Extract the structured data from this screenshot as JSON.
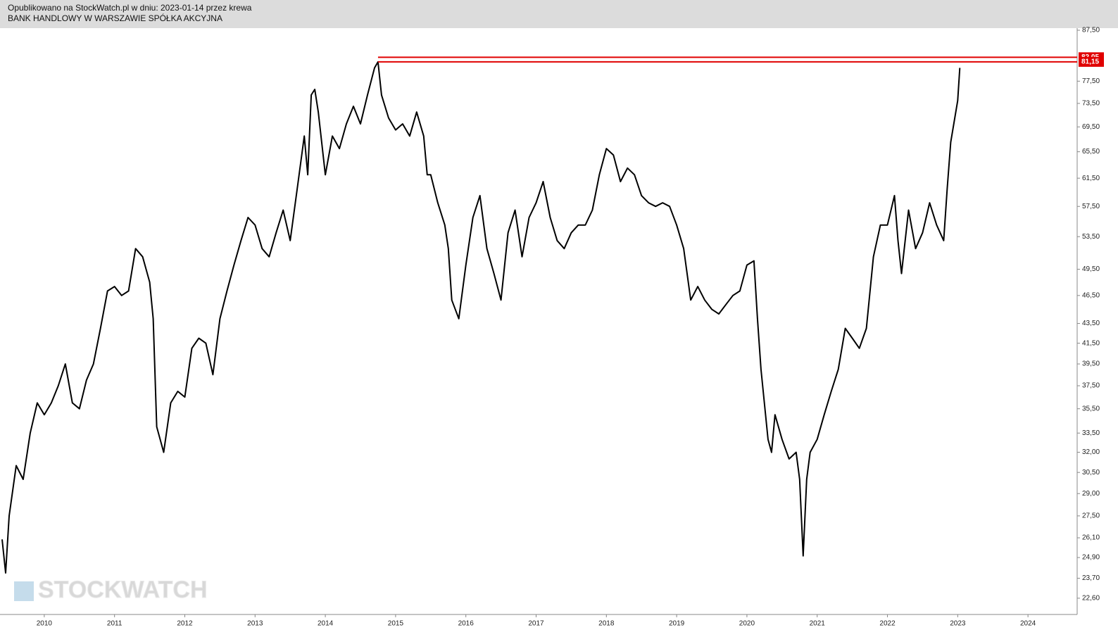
{
  "chart_data": {
    "type": "line",
    "subtitle": "Opublikowano na StockWatch.pl w dniu: 2023-01-14 przez krewa",
    "title": "BANK HANDLOWY W WARSZAWIE SPÓŁKA AKCYJNA",
    "watermark": "STOCKWATCH",
    "color": "#000000",
    "log_y": true,
    "xlim": [
      2009.37,
      2024.7
    ],
    "xticks": [
      2010,
      2011,
      2012,
      2013,
      2014,
      2015,
      2016,
      2017,
      2018,
      2019,
      2020,
      2021,
      2022,
      2023,
      2024
    ],
    "ylim": [
      21.74,
      87.94
    ],
    "yticks": [
      {
        "value": 87.5,
        "label": "87,50"
      },
      {
        "value": 77.5,
        "label": "77,50"
      },
      {
        "value": 73.5,
        "label": "73,50"
      },
      {
        "value": 69.5,
        "label": "69,50"
      },
      {
        "value": 65.5,
        "label": "65,50"
      },
      {
        "value": 61.5,
        "label": "61,50"
      },
      {
        "value": 57.5,
        "label": "57,50"
      },
      {
        "value": 53.5,
        "label": "53,50"
      },
      {
        "value": 49.5,
        "label": "49,50"
      },
      {
        "value": 46.5,
        "label": "46,50"
      },
      {
        "value": 43.5,
        "label": "43,50"
      },
      {
        "value": 41.5,
        "label": "41,50"
      },
      {
        "value": 39.5,
        "label": "39,50"
      },
      {
        "value": 37.5,
        "label": "37,50"
      },
      {
        "value": 35.5,
        "label": "35,50"
      },
      {
        "value": 33.5,
        "label": "33,50"
      },
      {
        "value": 32,
        "label": "32,00"
      },
      {
        "value": 30.5,
        "label": "30,50"
      },
      {
        "value": 29,
        "label": "29,00"
      },
      {
        "value": 27.5,
        "label": "27,50"
      },
      {
        "value": 26.1,
        "label": "26,10"
      },
      {
        "value": 24.9,
        "label": "24,90"
      },
      {
        "value": 23.7,
        "label": "23,70"
      },
      {
        "value": 22.6,
        "label": "22,60"
      }
    ],
    "hlines": [
      {
        "value": 82.05,
        "label": "82,05",
        "x": 2014.75,
        "color": "#e00000"
      },
      {
        "value": 81.15,
        "label": "81,15",
        "x": 2014.75,
        "color": "#e00000"
      }
    ],
    "x": [
      2009.4,
      2009.45,
      2009.5,
      2009.6,
      2009.7,
      2009.8,
      2009.9,
      2010.0,
      2010.1,
      2010.2,
      2010.3,
      2010.4,
      2010.5,
      2010.6,
      2010.7,
      2010.8,
      2010.9,
      2011.0,
      2011.1,
      2011.2,
      2011.3,
      2011.4,
      2011.5,
      2011.55,
      2011.6,
      2011.7,
      2011.8,
      2011.9,
      2012.0,
      2012.1,
      2012.2,
      2012.3,
      2012.4,
      2012.5,
      2012.6,
      2012.7,
      2012.8,
      2012.9,
      2013.0,
      2013.1,
      2013.2,
      2013.3,
      2013.4,
      2013.5,
      2013.6,
      2013.7,
      2013.75,
      2013.8,
      2013.85,
      2013.9,
      2014.0,
      2014.1,
      2014.2,
      2014.3,
      2014.4,
      2014.5,
      2014.6,
      2014.7,
      2014.75,
      2014.8,
      2014.9,
      2015.0,
      2015.1,
      2015.2,
      2015.3,
      2015.4,
      2015.45,
      2015.5,
      2015.6,
      2015.7,
      2015.75,
      2015.8,
      2015.9,
      2016.0,
      2016.1,
      2016.2,
      2016.3,
      2016.4,
      2016.5,
      2016.6,
      2016.7,
      2016.8,
      2016.9,
      2017.0,
      2017.1,
      2017.2,
      2017.3,
      2017.4,
      2017.5,
      2017.6,
      2017.7,
      2017.8,
      2017.9,
      2018.0,
      2018.1,
      2018.2,
      2018.3,
      2018.4,
      2018.5,
      2018.6,
      2018.7,
      2018.8,
      2018.9,
      2019.0,
      2019.1,
      2019.2,
      2019.3,
      2019.4,
      2019.5,
      2019.6,
      2019.7,
      2019.8,
      2019.9,
      2020.0,
      2020.1,
      2020.15,
      2020.2,
      2020.3,
      2020.35,
      2020.4,
      2020.5,
      2020.6,
      2020.7,
      2020.75,
      2020.8,
      2020.85,
      2020.9,
      2021.0,
      2021.1,
      2021.2,
      2021.3,
      2021.4,
      2021.5,
      2021.6,
      2021.7,
      2021.8,
      2021.9,
      2022.0,
      2022.1,
      2022.15,
      2022.2,
      2022.3,
      2022.4,
      2022.5,
      2022.6,
      2022.7,
      2022.8,
      2022.85,
      2022.9,
      2023.0,
      2023.03
    ],
    "values": [
      26,
      24,
      27.5,
      31,
      30,
      33.5,
      36,
      35,
      36,
      37.5,
      39.5,
      36,
      35.5,
      38,
      39.5,
      43,
      47,
      47.5,
      46.5,
      47,
      52,
      51,
      48,
      44,
      34,
      32,
      36,
      37,
      36.5,
      41,
      42,
      41.5,
      38.5,
      44,
      47,
      50,
      53,
      56,
      55,
      52,
      51,
      54,
      57,
      53,
      60,
      68,
      62,
      75,
      76,
      72,
      62,
      68,
      66,
      70,
      73,
      70,
      75,
      80,
      81.15,
      75,
      71,
      69,
      70,
      68,
      72,
      68,
      62,
      62,
      58,
      55,
      52,
      46,
      44,
      50,
      56,
      59,
      52,
      49,
      46,
      54,
      57,
      51,
      56,
      58,
      61,
      56,
      53,
      52,
      54,
      55,
      55,
      57,
      62,
      66,
      65,
      61,
      63,
      62,
      59,
      58,
      57.5,
      58,
      57.5,
      55,
      52,
      46,
      47.5,
      46,
      45,
      44.5,
      45.5,
      46.5,
      47,
      50,
      50.5,
      44,
      39,
      33,
      32,
      35,
      33,
      31.5,
      32,
      30,
      25,
      30,
      32,
      33,
      35,
      37,
      39,
      43,
      42,
      41,
      43,
      51,
      55,
      55,
      59,
      53,
      49,
      57,
      52,
      54,
      58,
      55,
      53,
      60,
      67,
      74,
      80
    ]
  }
}
